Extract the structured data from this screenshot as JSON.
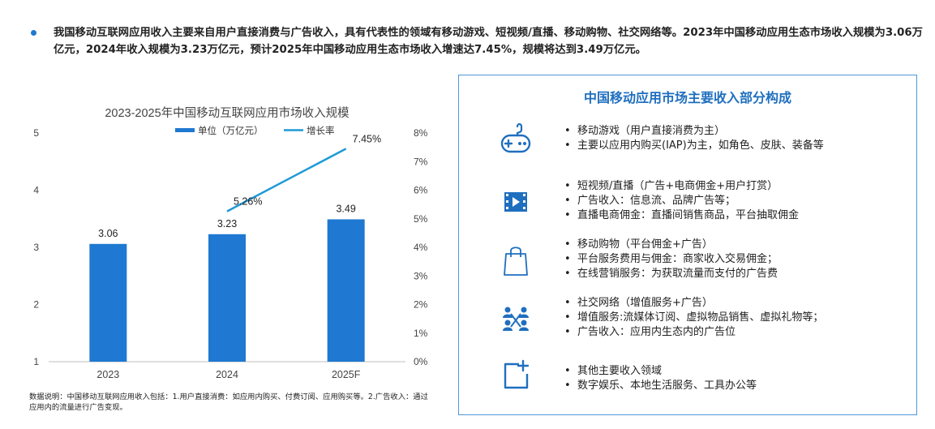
{
  "intro": {
    "text": "我国移动互联网应用收入主要来自用户直接消费与广告收入，具有代表性的领域有移动游戏、短视频/直播、移动购物、社交网络等。2023年中国移动应用生态市场收入规模为3.06万亿元，2024年收入规模为3.23万亿元，预计2025年中国移动应用生态市场收入增速达7.45%，规模将达到3.49万亿元。"
  },
  "chart_data": {
    "type": "bar",
    "title": "2023-2025年中国移动互联网应用市场收入规模",
    "categories": [
      "2023",
      "2024",
      "2025F"
    ],
    "series": [
      {
        "name": "单位（万亿元）",
        "type": "bar",
        "axis": "left",
        "values": [
          3.06,
          3.23,
          3.49
        ],
        "labels": [
          "3.06",
          "3.23",
          "3.49"
        ],
        "color": "#1f78d1"
      },
      {
        "name": "增长率",
        "type": "line",
        "axis": "right",
        "values": [
          null,
          5.26,
          7.45
        ],
        "labels": [
          "",
          "5.26%",
          "7.45%"
        ],
        "color": "#1e9ad6"
      }
    ],
    "ylim_left": [
      1,
      5
    ],
    "yticks_left": [
      "1",
      "2",
      "3",
      "4",
      "5"
    ],
    "ylim_right": [
      0,
      8
    ],
    "yticks_right": [
      "0%",
      "1%",
      "2%",
      "3%",
      "4%",
      "5%",
      "6%",
      "7%",
      "8%"
    ],
    "legend_position": "top-center",
    "grid": false
  },
  "note": {
    "text": "数据说明：中国移动互联网应用收入包括：1.用户直接消费：如应用内购买、付费订阅、应用购买等。2.广告收入：通过应用内的流量进行广告变现。"
  },
  "panel": {
    "title": "中国移动应用市场主要收入部分构成",
    "accent": "#1f6fbf",
    "items": [
      {
        "icon": "gamepad-icon",
        "lines": [
          "移动游戏（用户直接消费为主）",
          "主要以应用内购买(IAP)为主，如角色、皮肤、装备等"
        ]
      },
      {
        "icon": "video-icon",
        "lines": [
          "短视频/直播（广告+电商佣金+用户打赏）",
          "广告收入：信息流、品牌广告等；",
          "直播电商佣金：直播间销售商品，平台抽取佣金"
        ]
      },
      {
        "icon": "shopping-bag-icon",
        "lines": [
          "移动购物（平台佣金+广告）",
          "平台服务费用与佣金：商家收入交易佣金；",
          "在线营销服务：为获取流量而支付的广告费"
        ]
      },
      {
        "icon": "social-network-icon",
        "lines": [
          "社交网络（增值服务+广告）",
          "增值服务:流媒体订阅、虚拟物品销售、虚拟礼物等；",
          "广告收入：应用内生态内的广告位"
        ]
      },
      {
        "icon": "add-square-icon",
        "lines": [
          "其他主要收入领域",
          "数字娱乐、本地生活服务、工具办公等"
        ]
      }
    ]
  }
}
